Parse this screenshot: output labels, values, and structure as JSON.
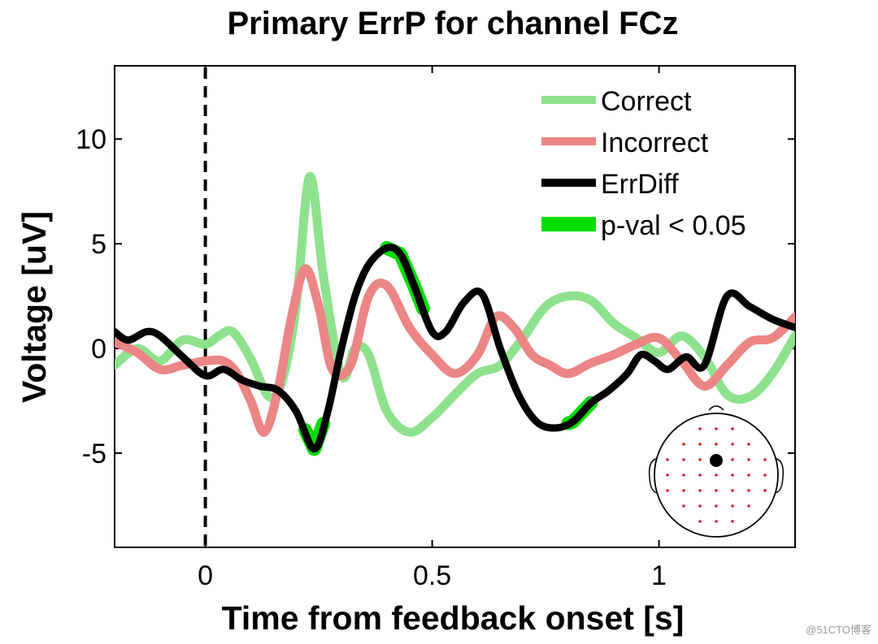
{
  "chart_data": {
    "type": "line",
    "title": "Primary ErrP for channel FCz",
    "xlabel": "Time from feedback onset [s]",
    "ylabel": "Voltage [uV]",
    "xlim": [
      -0.2,
      1.3
    ],
    "ylim": [
      -9.5,
      13.5
    ],
    "xticks": [
      0,
      0.5,
      1
    ],
    "xtick_labels": [
      "0",
      "0.5",
      "1"
    ],
    "yticks": [
      -5,
      0,
      5,
      10
    ],
    "ytick_labels": [
      "-5",
      "0",
      "5",
      "10"
    ],
    "grid": false,
    "legend_position": "top-right",
    "event_marker": {
      "x": 0,
      "style": "dashed"
    },
    "series": [
      {
        "name": "Correct",
        "color": "#8ee28e",
        "x": [
          -0.2,
          -0.15,
          -0.1,
          -0.05,
          0.0,
          0.03,
          0.06,
          0.1,
          0.14,
          0.17,
          0.2,
          0.23,
          0.26,
          0.3,
          0.33,
          0.36,
          0.4,
          0.45,
          0.5,
          0.55,
          0.6,
          0.65,
          0.7,
          0.75,
          0.8,
          0.85,
          0.9,
          0.95,
          1.0,
          1.05,
          1.1,
          1.15,
          1.2,
          1.25,
          1.3
        ],
        "values": [
          -0.8,
          0.0,
          -0.6,
          0.4,
          0.2,
          0.6,
          0.8,
          -0.5,
          -2.3,
          -1.5,
          2.0,
          8.2,
          3.5,
          -1.3,
          0.0,
          -0.3,
          -3.0,
          -4.0,
          -3.3,
          -2.2,
          -1.2,
          -0.8,
          0.5,
          2.0,
          2.5,
          2.3,
          1.2,
          0.5,
          -0.2,
          0.6,
          -0.4,
          -2.2,
          -2.3,
          -1.2,
          0.6
        ]
      },
      {
        "name": "Incorrect",
        "color": "#ec8585",
        "x": [
          -0.2,
          -0.15,
          -0.1,
          -0.05,
          0.0,
          0.04,
          0.07,
          0.1,
          0.13,
          0.16,
          0.19,
          0.22,
          0.25,
          0.28,
          0.32,
          0.36,
          0.4,
          0.45,
          0.5,
          0.55,
          0.6,
          0.64,
          0.68,
          0.72,
          0.76,
          0.8,
          0.85,
          0.9,
          0.95,
          1.0,
          1.05,
          1.1,
          1.15,
          1.2,
          1.25,
          1.3
        ],
        "values": [
          0.3,
          -0.2,
          -1.0,
          -0.8,
          -0.6,
          -0.6,
          -1.2,
          -2.5,
          -4.0,
          -2.0,
          1.5,
          3.8,
          2.0,
          -1.0,
          -0.8,
          2.5,
          3.0,
          1.0,
          -0.3,
          -1.2,
          -0.3,
          1.5,
          1.0,
          -0.3,
          -0.8,
          -1.2,
          -0.7,
          -0.3,
          0.2,
          0.5,
          -0.6,
          -1.8,
          -0.8,
          0.3,
          0.5,
          1.5
        ]
      },
      {
        "name": "ErrDiff",
        "color": "#000000",
        "x": [
          -0.2,
          -0.17,
          -0.13,
          -0.1,
          -0.05,
          0.0,
          0.04,
          0.08,
          0.12,
          0.16,
          0.2,
          0.24,
          0.27,
          0.3,
          0.33,
          0.36,
          0.4,
          0.43,
          0.46,
          0.5,
          0.53,
          0.57,
          0.61,
          0.65,
          0.69,
          0.73,
          0.77,
          0.81,
          0.85,
          0.89,
          0.93,
          0.96,
          0.99,
          1.02,
          1.06,
          1.1,
          1.15,
          1.2,
          1.25,
          1.3
        ],
        "values": [
          0.8,
          0.4,
          0.8,
          0.6,
          -0.4,
          -1.3,
          -1.0,
          -1.5,
          -1.8,
          -2.0,
          -3.0,
          -4.8,
          -3.0,
          0.0,
          2.5,
          4.0,
          4.8,
          4.5,
          3.0,
          0.8,
          0.8,
          2.2,
          2.6,
          0.0,
          -2.2,
          -3.5,
          -3.8,
          -3.5,
          -2.6,
          -2.0,
          -1.2,
          -0.3,
          -0.6,
          -1.0,
          -0.4,
          -0.8,
          2.5,
          2.0,
          1.4,
          1.0
        ]
      }
    ],
    "significance": {
      "name": "p-val < 0.05",
      "color": "#00dd00",
      "intervals": [
        [
          0.22,
          0.26
        ],
        [
          0.4,
          0.48
        ],
        [
          0.8,
          0.85
        ]
      ]
    }
  },
  "legend": {
    "items": [
      {
        "label": "Correct",
        "color": "#8ee28e"
      },
      {
        "label": "Incorrect",
        "color": "#ec8585"
      },
      {
        "label": "ErrDiff",
        "color": "#000000"
      },
      {
        "label": "p-val < 0.05",
        "color": "#00dd00"
      }
    ]
  },
  "scalp_map": {
    "electrode_color": "#e02020",
    "highlight_color": "#000000",
    "electrode_count": 40
  },
  "watermark": "@51CTO博客"
}
